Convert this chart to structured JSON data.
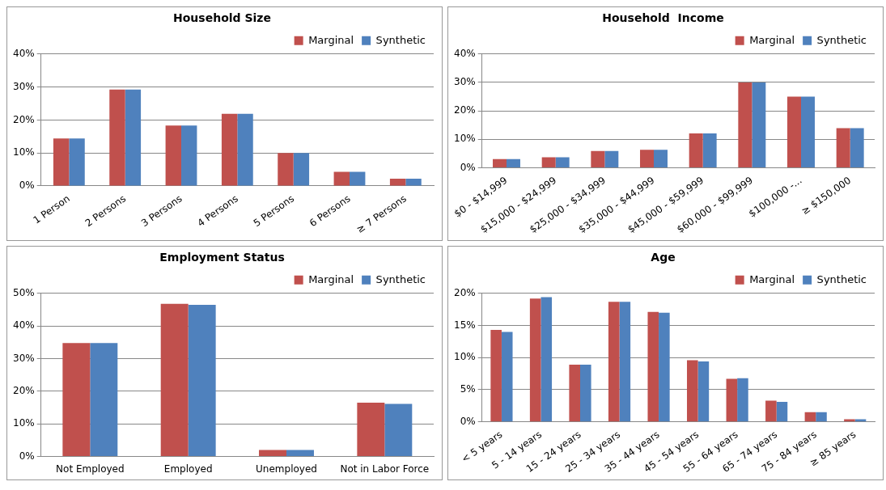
{
  "chart_data": [
    {
      "type": "bar",
      "title": "Household Size",
      "categories": [
        "1 Person",
        "2 Persons",
        "3 Persons",
        "4 Persons",
        "5 Persons",
        "6 Persons",
        "≥ 7 Persons"
      ],
      "series": [
        {
          "name": "Marginal",
          "color": "#c0504d",
          "values": [
            14.4,
            29.2,
            18.3,
            21.9,
            10,
            4.3,
            2.2
          ]
        },
        {
          "name": "Synthetic",
          "color": "#4f81bd",
          "values": [
            14.4,
            29.2,
            18.3,
            21.9,
            10,
            4.3,
            2.2
          ]
        }
      ],
      "ylim": [
        0,
        40
      ],
      "yticks": [
        {
          "value": 0,
          "label": "0%"
        },
        {
          "value": 10,
          "label": "10%"
        },
        {
          "value": 20,
          "label": "20%"
        },
        {
          "value": 30,
          "label": "30%"
        },
        {
          "value": 40,
          "label": "40%"
        }
      ],
      "grid": "y",
      "legend": "top right"
    },
    {
      "type": "bar",
      "title": "Household  Income",
      "categories": [
        "$0 - $14,999",
        "$15,000 - $24,999",
        "$25,000 - $34,999",
        "$35,000 - $44,999",
        "$45,000 - $59,999",
        "$60,000 - $99,999",
        "$100,000 -...",
        "≥ $150,000"
      ],
      "series": [
        {
          "name": "Marginal",
          "color": "#c0504d",
          "values": [
            3,
            3.7,
            5.9,
            6.3,
            12.1,
            30,
            25,
            13.9
          ]
        },
        {
          "name": "Synthetic",
          "color": "#4f81bd",
          "values": [
            3,
            3.7,
            5.9,
            6.3,
            12.1,
            30,
            25,
            13.9
          ]
        }
      ],
      "ylim": [
        0,
        40
      ],
      "yticks": [
        {
          "value": 0,
          "label": "0%"
        },
        {
          "value": 10,
          "label": "10%"
        },
        {
          "value": 20,
          "label": "20%"
        },
        {
          "value": 30,
          "label": "30%"
        },
        {
          "value": 40,
          "label": "40%"
        }
      ],
      "grid": "y",
      "legend": "top right"
    },
    {
      "type": "bar",
      "title": "Employment Status",
      "categories": [
        "Not Employed",
        "Employed",
        "Unemployed",
        "Not in Labor Force"
      ],
      "series": [
        {
          "name": "Marginal",
          "color": "#c0504d",
          "values": [
            34.8,
            46.8,
            2,
            16.5
          ]
        },
        {
          "name": "Synthetic",
          "color": "#4f81bd",
          "values": [
            34.8,
            46.5,
            2,
            16.1
          ]
        }
      ],
      "ylim": [
        0,
        50
      ],
      "yticks": [
        {
          "value": 0,
          "label": "0%"
        },
        {
          "value": 10,
          "label": "10%"
        },
        {
          "value": 20,
          "label": "20%"
        },
        {
          "value": 30,
          "label": "30%"
        },
        {
          "value": 40,
          "label": "40%"
        },
        {
          "value": 50,
          "label": "50%"
        }
      ],
      "grid": "y",
      "legend": "top right"
    },
    {
      "type": "bar",
      "title": "Age",
      "categories": [
        "< 5 years",
        "5 - 14 years",
        "15 - 24 years",
        "25 - 34 years",
        "35 - 44 years",
        "45 - 54 years",
        "55 - 64 years",
        "65 - 74 years",
        "75 - 84 years",
        "≥ 85 years"
      ],
      "series": [
        {
          "name": "Marginal",
          "color": "#c0504d",
          "values": [
            14.3,
            19.2,
            8.9,
            18.7,
            17.1,
            9.6,
            6.7,
            3.3,
            1.5,
            0.4
          ]
        },
        {
          "name": "Synthetic",
          "color": "#4f81bd",
          "values": [
            14,
            19.4,
            8.9,
            18.7,
            17,
            9.4,
            6.8,
            3.1,
            1.5,
            0.4
          ]
        }
      ],
      "ylim": [
        0,
        20
      ],
      "yticks": [
        {
          "value": 0,
          "label": "0%"
        },
        {
          "value": 5,
          "label": "5%"
        },
        {
          "value": 10,
          "label": "10%"
        },
        {
          "value": 15,
          "label": "15%"
        },
        {
          "value": 20,
          "label": "20%"
        }
      ],
      "grid": "y",
      "legend": "top right"
    }
  ]
}
